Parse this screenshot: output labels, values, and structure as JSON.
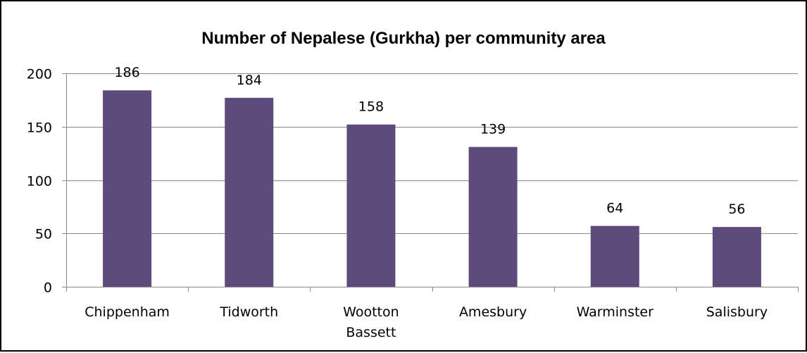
{
  "chart_data": {
    "type": "bar",
    "title": "Number of Nepalese (Gurkha)  per community area",
    "categories": [
      "Chippenham",
      "Tidworth",
      "Wootton Bassett",
      "Amesbury",
      "Warminster",
      "Salisbury"
    ],
    "values": [
      186,
      184,
      158,
      139,
      64,
      56
    ],
    "bar_heights_as_drawn": [
      184,
      177,
      152,
      131,
      57,
      56
    ],
    "ylim": [
      0,
      200
    ],
    "yticks": [
      0,
      50,
      100,
      150,
      200
    ],
    "xlabel": "",
    "ylabel": "",
    "grid": true,
    "legend": "none",
    "colors": {
      "bar": "#5e4a7b",
      "grid": "#8a8a8a",
      "axis": "#8a8a8a"
    }
  }
}
